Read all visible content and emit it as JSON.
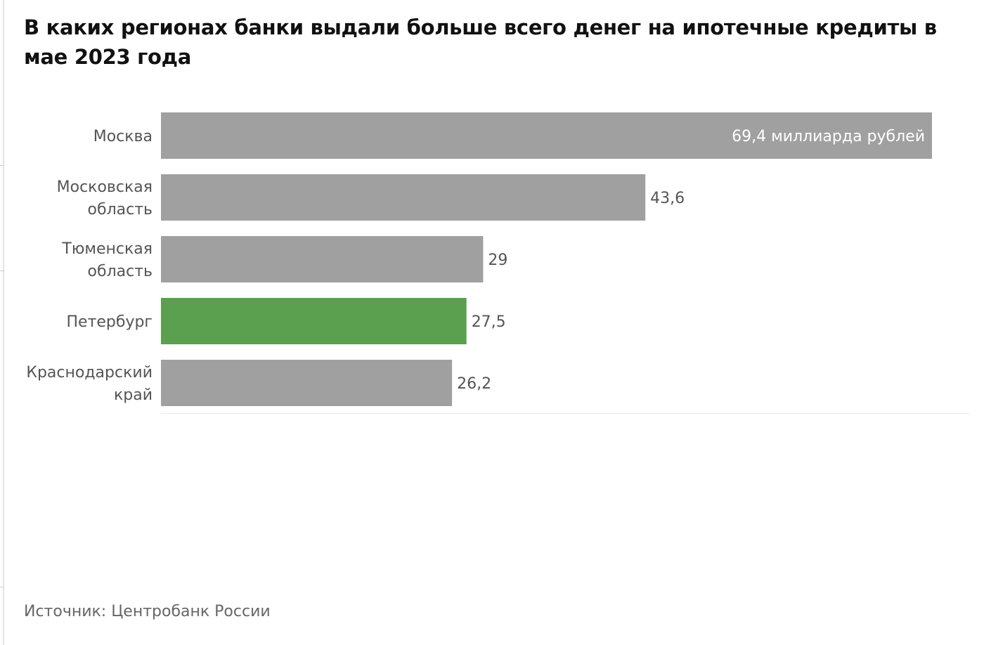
{
  "chart_data": {
    "type": "bar",
    "orientation": "horizontal",
    "title": "В каких регионах банки выдали больше всего денег на ипотечные кредиты в мае 2023 года",
    "categories": [
      [
        "Москва"
      ],
      [
        "Московская",
        "область"
      ],
      [
        "Тюменская",
        "область"
      ],
      [
        "Петербург"
      ],
      [
        "Краснодарский",
        "край"
      ]
    ],
    "values": [
      69.4,
      43.6,
      29,
      27.5,
      26.2
    ],
    "data_labels": [
      "69,4 миллиарда рублей",
      "43,6",
      "29",
      "27,5",
      "26,2"
    ],
    "highlight_index": 3,
    "colors": {
      "default": "#a0a0a0",
      "highlight": "#5aa04e"
    },
    "xlabel": "",
    "ylabel": "",
    "xlim": [
      0,
      69.4
    ],
    "grid": false,
    "source": "Источник: Центробанк России"
  }
}
